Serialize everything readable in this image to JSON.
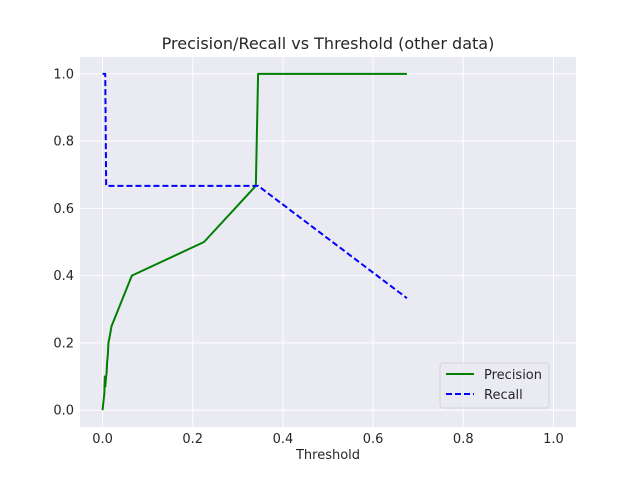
{
  "chart_data": {
    "type": "line",
    "title": "Precision/Recall vs Threshold (other data)",
    "xlabel": "Threshold",
    "ylabel": "",
    "xlim": [
      -0.05,
      1.05
    ],
    "ylim": [
      -0.05,
      1.05
    ],
    "xticks": [
      0.0,
      0.2,
      0.4,
      0.6,
      0.8,
      1.0
    ],
    "yticks": [
      0.0,
      0.2,
      0.4,
      0.6,
      0.8,
      1.0
    ],
    "xtick_labels": [
      "0.0",
      "0.2",
      "0.4",
      "0.6",
      "0.8",
      "1.0"
    ],
    "ytick_labels": [
      "0.0",
      "0.2",
      "0.4",
      "0.6",
      "0.8",
      "1.0"
    ],
    "grid": true,
    "legend_position": "lower-right",
    "series": [
      {
        "name": "Precision",
        "color": "#008000",
        "dash": "solid",
        "points": [
          [
            0.0,
            0.0
          ],
          [
            0.004,
            0.05
          ],
          [
            0.005,
            0.1
          ],
          [
            0.006,
            0.07
          ],
          [
            0.008,
            0.1
          ],
          [
            0.009,
            0.11
          ],
          [
            0.01,
            0.14
          ],
          [
            0.012,
            0.17
          ],
          [
            0.013,
            0.2
          ],
          [
            0.016,
            0.22
          ],
          [
            0.02,
            0.25
          ],
          [
            0.065,
            0.4
          ],
          [
            0.225,
            0.5
          ],
          [
            0.34,
            0.667
          ],
          [
            0.345,
            1.0
          ],
          [
            0.675,
            1.0
          ]
        ]
      },
      {
        "name": "Recall",
        "color": "#0000ff",
        "dash": "dashed",
        "points": [
          [
            0.0,
            1.0
          ],
          [
            0.006,
            1.0
          ],
          [
            0.008,
            0.667
          ],
          [
            0.34,
            0.667
          ],
          [
            0.345,
            0.667
          ],
          [
            0.675,
            0.333
          ]
        ]
      }
    ]
  }
}
